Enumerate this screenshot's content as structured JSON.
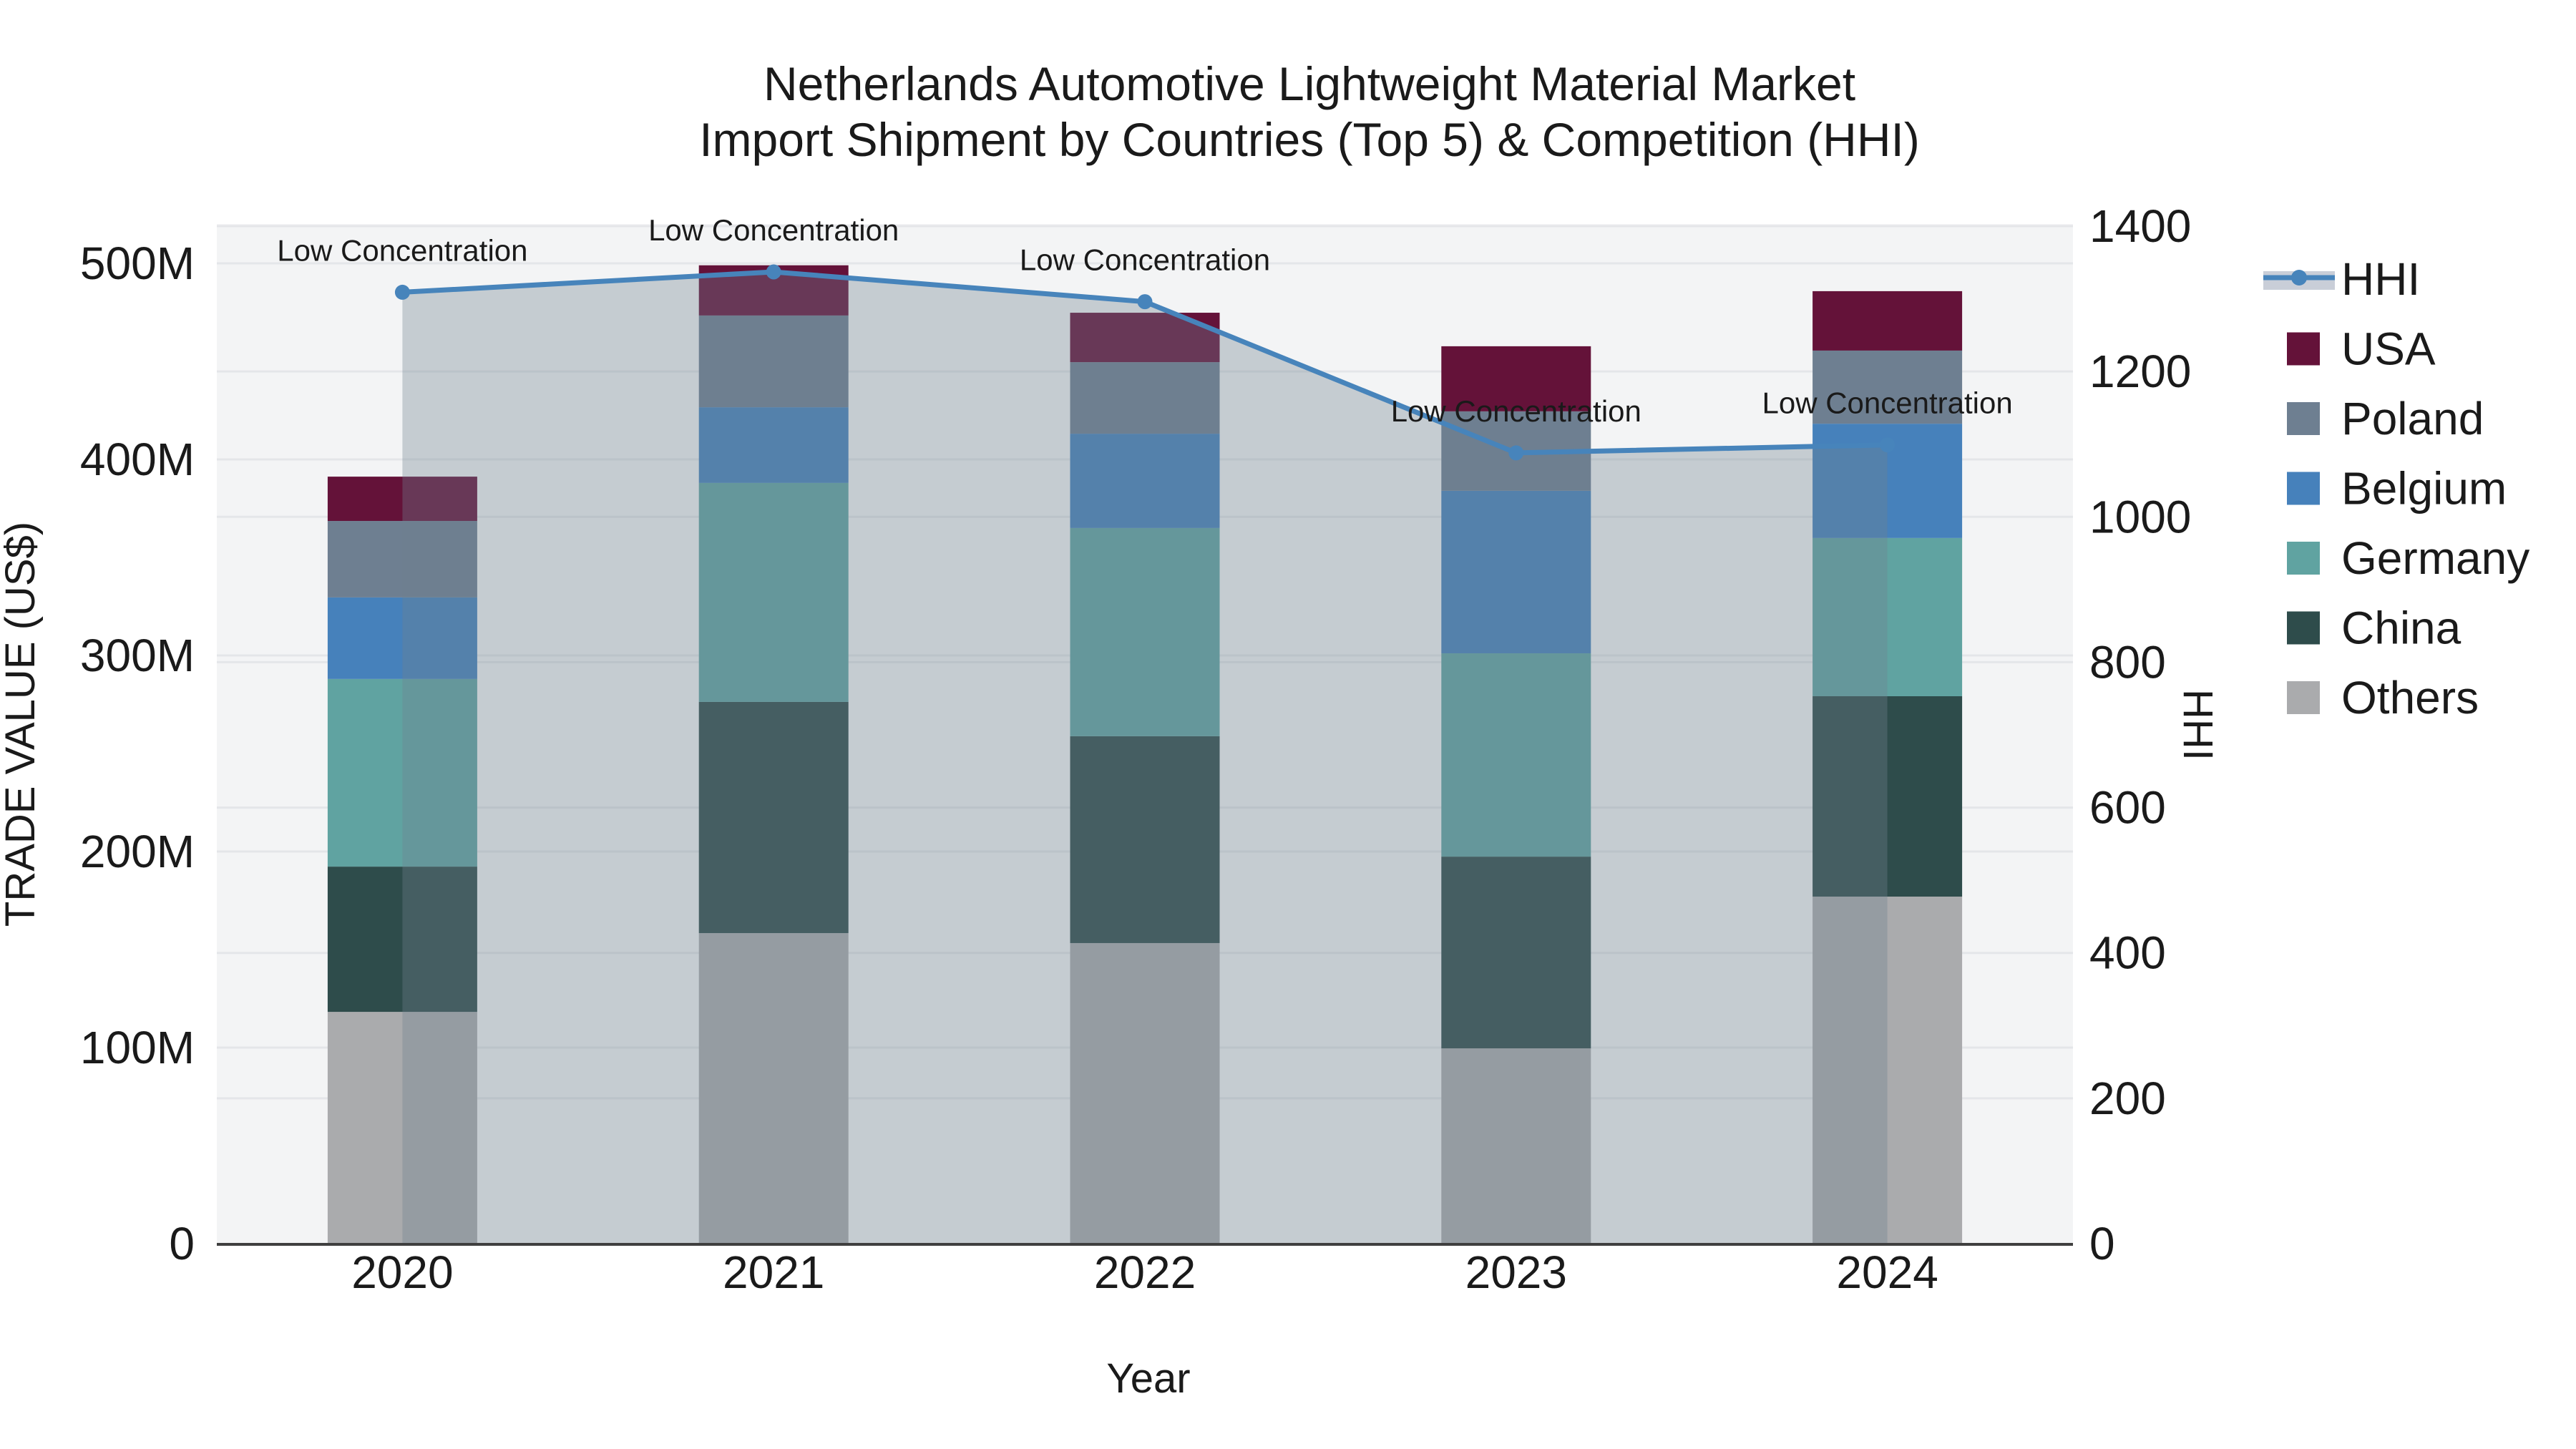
{
  "chart_data": {
    "type": "combo-stacked-bar-line",
    "title_line1": "Netherlands Automotive Lightweight Material Market",
    "title_line2": "Import Shipment by Countries (Top 5) & Competition (HHI)",
    "xlabel": "Year",
    "ylabel_left": "TRADE VALUE (US$)",
    "ylabel_right": "HHI",
    "categories": [
      "2020",
      "2021",
      "2022",
      "2023",
      "2024"
    ],
    "bar_value_unit": "million US$",
    "series": [
      {
        "name": "USA",
        "type": "bar",
        "color": "#641239",
        "values": [
          22.6,
          25.6,
          25.2,
          33.2,
          30.3
        ]
      },
      {
        "name": "Poland",
        "type": "bar",
        "color": "#6e7f91",
        "values": [
          39.0,
          46.8,
          36.5,
          40.5,
          37.3
        ]
      },
      {
        "name": "Belgium",
        "type": "bar",
        "color": "#4681bb",
        "values": [
          41.6,
          38.6,
          48.1,
          82.9,
          58.3
        ]
      },
      {
        "name": "Germany",
        "type": "bar",
        "color": "#60a3a1",
        "values": [
          95.7,
          111.7,
          106.2,
          103.7,
          80.7
        ]
      },
      {
        "name": "China",
        "type": "bar",
        "color": "#2e4c4b",
        "values": [
          74.1,
          117.9,
          105.5,
          97.8,
          102.2
        ]
      },
      {
        "name": "Others",
        "type": "bar",
        "color": "#aaabad",
        "values": [
          118.2,
          158.4,
          153.3,
          99.6,
          177.0
        ]
      }
    ],
    "stack_order_bottom_to_top": [
      "Others",
      "China",
      "Germany",
      "Belgium",
      "Poland",
      "USA"
    ],
    "bar_totals": [
      391.2,
      499.0,
      474.8,
      457.7,
      485.8
    ],
    "hhi": {
      "name": "HHI",
      "type": "line-with-area-fill",
      "line_color": "#4784bb",
      "area_fill": "rgba(112,128,144,0.35)",
      "legend_band_color": "#c9ced8",
      "values": [
        1309,
        1337,
        1296,
        1088,
        1099
      ]
    },
    "annotations": [
      {
        "year": "2020",
        "text": "Low Concentration"
      },
      {
        "year": "2021",
        "text": "Low Concentration"
      },
      {
        "year": "2022",
        "text": "Low Concentration"
      },
      {
        "year": "2023",
        "text": "Low Concentration"
      },
      {
        "year": "2024",
        "text": "Low Concentration"
      }
    ],
    "axes": {
      "left": {
        "tick_labels": [
          "0",
          "100M",
          "200M",
          "300M",
          "400M",
          "500M"
        ],
        "tick_values": [
          0,
          100,
          200,
          300,
          400,
          500
        ],
        "range_max_millions": 520
      },
      "right": {
        "tick_labels": [
          "0",
          "200",
          "400",
          "600",
          "800",
          "1000",
          "1200",
          "1400"
        ],
        "tick_values": [
          0,
          200,
          400,
          600,
          800,
          1000,
          1200,
          1400
        ],
        "range_max": 1400
      },
      "x": {
        "tick_labels": [
          "2020",
          "2021",
          "2022",
          "2023",
          "2024"
        ]
      }
    },
    "legend": {
      "position": "right",
      "items": [
        {
          "label": "HHI",
          "kind": "line"
        },
        {
          "label": "USA",
          "kind": "swatch",
          "color": "#641239"
        },
        {
          "label": "Poland",
          "kind": "swatch",
          "color": "#6e7f91"
        },
        {
          "label": "Belgium",
          "kind": "swatch",
          "color": "#4681bb"
        },
        {
          "label": "Germany",
          "kind": "swatch",
          "color": "#60a3a1"
        },
        {
          "label": "China",
          "kind": "swatch",
          "color": "#2e4c4b"
        },
        {
          "label": "Others",
          "kind": "swatch",
          "color": "#aaabad"
        }
      ]
    },
    "style": {
      "plot_background": "#f3f4f5",
      "gridline_color": "#e4e6e9",
      "axis_line_color": "#3f3f3f",
      "text_color": "#1a1a1a"
    }
  }
}
